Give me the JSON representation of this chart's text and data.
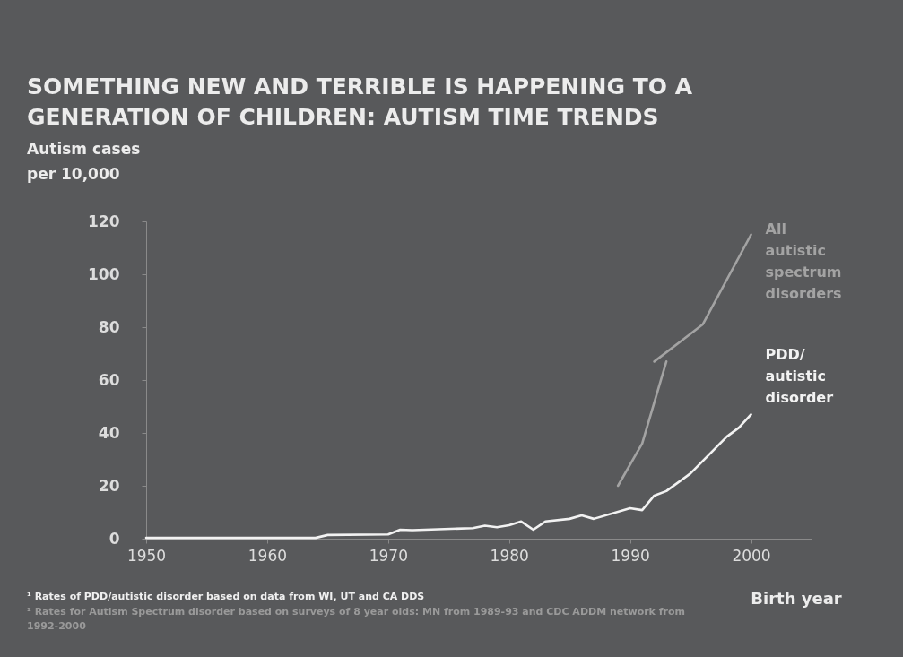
{
  "chart_data": {
    "type": "line",
    "title": "SOMETHING NEW AND TERRIBLE IS HAPPENING TO A GENERATION OF CHILDREN: AUTISM TIME TRENDS",
    "ylabel": "Autism cases per 10,000",
    "xlabel": "Birth year",
    "xlim": [
      1950,
      2005
    ],
    "xticks": [
      1950,
      1960,
      1970,
      1980,
      1990,
      2000
    ],
    "ylim": [
      0,
      120
    ],
    "yticks": [
      0,
      20,
      40,
      60,
      80,
      100,
      120
    ],
    "grid": false,
    "marker": "none",
    "line_style": "solid",
    "series": [
      {
        "name": "PDD/ autistic disorder",
        "color": "#f2f2f2",
        "x": [
          1950,
          1964,
          1965,
          1970,
          1971,
          1972,
          1977,
          1978,
          1979,
          1980,
          1981,
          1982,
          1983,
          1985,
          1986,
          1987,
          1990,
          1991,
          1992,
          1993,
          1995,
          1998,
          1999,
          2000
        ],
        "values": [
          0.3,
          0.3,
          1.4,
          1.6,
          3.4,
          3.2,
          4,
          4.9,
          4.3,
          5.1,
          6.5,
          3.4,
          6.5,
          7.5,
          8.8,
          7.5,
          11.5,
          10.8,
          16.3,
          18,
          24.7,
          38.6,
          42,
          47
        ]
      },
      {
        "color": "#a3a3a3",
        "x": [
          1989,
          1991,
          1993
        ],
        "values": [
          20,
          36,
          67
        ]
      },
      {
        "name": "All autistic spectrum disorders",
        "color": "#a3a3a3",
        "x": [
          1992,
          1996,
          2000
        ],
        "values": [
          67,
          81,
          115
        ]
      }
    ],
    "annotations": [
      "¹ Rates of PDD/autistic disorder based on data from WI, UT and CA DDS",
      "² Rates for Autism Spectrum disorder based on surveys of 8 year olds: MN from 1989-93 and CDC ADDM network from 1992-2000"
    ]
  }
}
